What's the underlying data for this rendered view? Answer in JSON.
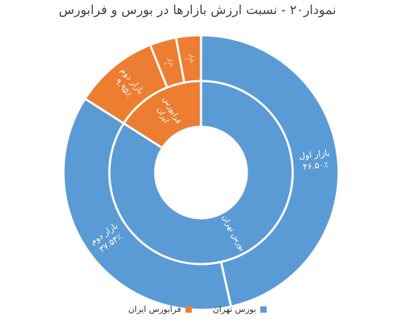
{
  "chart_data": {
    "type": "sunburst",
    "title": "نمودار۲۰ - نسبت ارزش بازارها در بورس و فرابورس",
    "inner_ring": [
      {
        "name": "بورس تهران",
        "lines": [
          "بورس تهران"
        ],
        "value": 84.03,
        "color": "#5b9bd5"
      },
      {
        "name": "فرابورس ایران",
        "lines": [
          "فرابورس",
          "ایران"
        ],
        "value": 15.97,
        "color": "#ed7d31"
      }
    ],
    "outer_ring": [
      {
        "parent": "بورس تهران",
        "lines": [
          "بازار اول",
          "۴۶.۵۰٪"
        ],
        "value": 46.5,
        "color": "#5b9bd5"
      },
      {
        "parent": "بورس تهران",
        "lines": [
          "بازار دوم",
          "۳۷.۵۳٪"
        ],
        "value": 37.53,
        "color": "#5b9bd5"
      },
      {
        "parent": "فرابورس ایران",
        "lines": [
          "بازار دوم",
          "۹.۹۵٪"
        ],
        "value": 9.95,
        "color": "#ed7d31"
      },
      {
        "parent": "فرابورس ایران",
        "lines": [
          "بازار",
          "٪"
        ],
        "value": 3.1,
        "color": "#ed7d31"
      },
      {
        "parent": "فرابورس ایران",
        "lines": [
          "بازار",
          "٪"
        ],
        "value": 2.92,
        "color": "#ed7d31"
      }
    ],
    "legend": [
      {
        "label": "بورس تهران",
        "color": "#5b9bd5"
      },
      {
        "label": "فرابورس ایران",
        "color": "#ed7d31"
      }
    ]
  }
}
